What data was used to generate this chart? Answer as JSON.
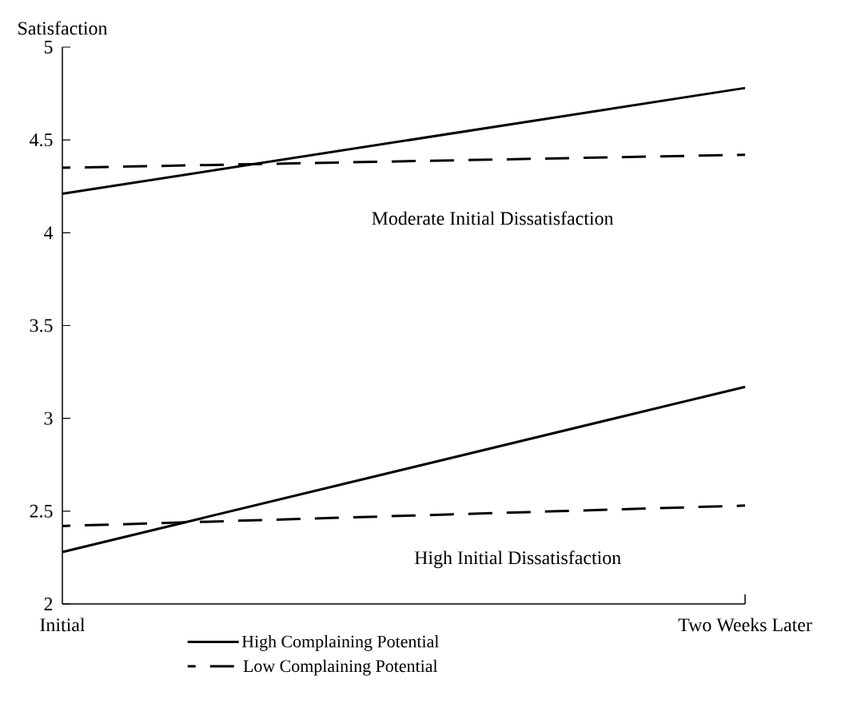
{
  "chart_data": {
    "type": "line",
    "ylabel": "Satisfaction",
    "categories": [
      "Initial",
      "Two Weeks Later"
    ],
    "series": [
      {
        "name": "High Complaining Potential",
        "color": "#000000",
        "line_style": "solid",
        "values": [
          4.21,
          4.78
        ]
      },
      {
        "name": "Low Complaining Potential",
        "color": "#000000",
        "line_style": "dashed",
        "values": [
          4.35,
          4.42
        ]
      },
      {
        "color": "#000000",
        "line_style": "solid",
        "values": [
          2.28,
          3.17
        ]
      },
      {
        "color": "#000000",
        "line_style": "dashed",
        "values": [
          2.42,
          2.53
        ]
      }
    ],
    "ylim": [
      2,
      5
    ],
    "yticks": [
      2,
      2.5,
      3,
      3.5,
      4,
      4.5,
      5
    ],
    "annotations": [
      "Moderate Initial Dissatisfaction",
      "High Initial Dissatisfaction"
    ],
    "legend": "bottom",
    "grid": false,
    "marker": "none"
  }
}
